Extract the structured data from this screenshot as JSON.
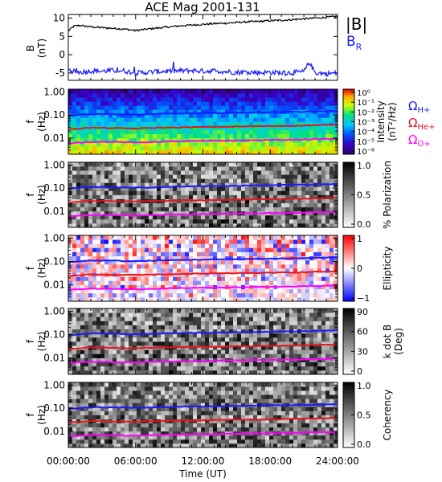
{
  "figure": {
    "title": "ACE Mag 2001-131",
    "x_axis_label": "Time (UT)",
    "x_tick_labels": [
      "00:00:00",
      "06:00:00",
      "12:00:00",
      "18:00:00",
      "24:00:00"
    ]
  },
  "chart_data": [
    {
      "type": "line",
      "panel": "magnetic-field",
      "ylabel": "B",
      "yunit": "(nT)",
      "ylim": [
        -7,
        11
      ],
      "y_ticks": [
        10,
        5,
        0,
        -5
      ],
      "x_hours": [
        0,
        0.5,
        1,
        2,
        3,
        4,
        5,
        6,
        7,
        8,
        9,
        10,
        11,
        12,
        13,
        14,
        15,
        16,
        17,
        18,
        19,
        20,
        21,
        21.5,
        22,
        23,
        24
      ],
      "series": [
        {
          "name": "|B|",
          "color": "#000000",
          "values": [
            6.5,
            7.8,
            8.0,
            7.6,
            7.4,
            7.2,
            7.0,
            6.6,
            7.0,
            7.3,
            7.6,
            7.9,
            8.1,
            8.3,
            8.5,
            8.6,
            8.8,
            9.0,
            9.1,
            9.3,
            9.4,
            9.6,
            9.8,
            9.9,
            10.0,
            10.2,
            10.5
          ]
        },
        {
          "name": "B",
          "subscript": "R",
          "color": "#1a1aff",
          "values": [
            -4.0,
            -4.6,
            -4.8,
            -4.4,
            -4.5,
            -4.3,
            -4.4,
            -5.0,
            -4.8,
            -4.6,
            -4.5,
            -4.4,
            -4.3,
            -4.5,
            -4.4,
            -4.6,
            -4.8,
            -4.7,
            -4.9,
            -4.8,
            -5.0,
            -4.9,
            -4.7,
            -2.0,
            -4.9,
            -5.2,
            -5.0
          ]
        }
      ]
    },
    {
      "type": "heatmap",
      "panel": "intensity",
      "ylabel": "f",
      "yunit": "(Hz)",
      "yscale": "log",
      "ylim": [
        0.002,
        1.3
      ],
      "y_tick_labels": [
        "1.00",
        "0.10",
        "0.01"
      ],
      "colorbar": {
        "label": "Intensity",
        "unit": "(nT²/Hz)",
        "ticks": [
          "10⁰",
          "10⁻¹",
          "10⁻²",
          "10⁻³",
          "10⁻⁴",
          "10⁻⁵",
          "10⁻⁶"
        ]
      }
    },
    {
      "type": "heatmap",
      "panel": "polarization",
      "ylabel": "f",
      "yunit": "(Hz)",
      "yscale": "log",
      "ylim": [
        0.002,
        1.3
      ],
      "y_tick_labels": [
        "1.00",
        "0.10",
        "0.01"
      ],
      "colorbar": {
        "label": "% Polarization",
        "ticks": [
          "1.0",
          "0.5",
          "0.0"
        ]
      }
    },
    {
      "type": "heatmap",
      "panel": "ellipticity",
      "ylabel": "f",
      "yunit": "(Hz)",
      "yscale": "log",
      "ylim": [
        0.002,
        1.3
      ],
      "y_tick_labels": [
        "1.00",
        "0.10",
        "0.01"
      ],
      "colorbar": {
        "label": "Ellipticity",
        "ticks": [
          "1",
          "0",
          "−1"
        ]
      }
    },
    {
      "type": "heatmap",
      "panel": "k-dot-b",
      "ylabel": "f",
      "yunit": "(Hz)",
      "yscale": "log",
      "ylim": [
        0.002,
        1.3
      ],
      "y_tick_labels": [
        "1.00",
        "0.10",
        "0.01"
      ],
      "colorbar": {
        "label": "k dot B",
        "unit": "(Deg)",
        "ticks": [
          "90",
          "60",
          "30",
          "0"
        ]
      }
    },
    {
      "type": "heatmap",
      "panel": "coherency",
      "ylabel": "f",
      "yunit": "(Hz)",
      "yscale": "log",
      "ylim": [
        0.002,
        1.3
      ],
      "y_tick_labels": [
        "1.00",
        "0.10",
        "0.01"
      ],
      "colorbar": {
        "label": "Coherency",
        "ticks": [
          "1.0",
          "0.5",
          "0.0"
        ]
      }
    }
  ],
  "gyrofrequencies": {
    "x_hours": [
      0,
      2,
      4,
      6,
      8,
      10,
      12,
      14,
      16,
      18,
      20,
      22,
      24
    ],
    "lines": [
      {
        "symbol": "Ω",
        "ion": "H+",
        "color": "#1a1aff",
        "values": [
          0.095,
          0.11,
          0.108,
          0.102,
          0.11,
          0.116,
          0.12,
          0.124,
          0.128,
          0.132,
          0.136,
          0.142,
          0.15
        ]
      },
      {
        "symbol": "Ω",
        "ion": "He+",
        "color": "#e8141a",
        "values": [
          0.024,
          0.028,
          0.027,
          0.026,
          0.028,
          0.029,
          0.03,
          0.031,
          0.032,
          0.033,
          0.034,
          0.036,
          0.038
        ]
      },
      {
        "symbol": "Ω",
        "ion": "O+",
        "color": "#ff00ff",
        "values": [
          0.006,
          0.0069,
          0.0068,
          0.0064,
          0.0069,
          0.0073,
          0.0075,
          0.0078,
          0.008,
          0.0083,
          0.0085,
          0.0089,
          0.0094
        ]
      }
    ]
  }
}
